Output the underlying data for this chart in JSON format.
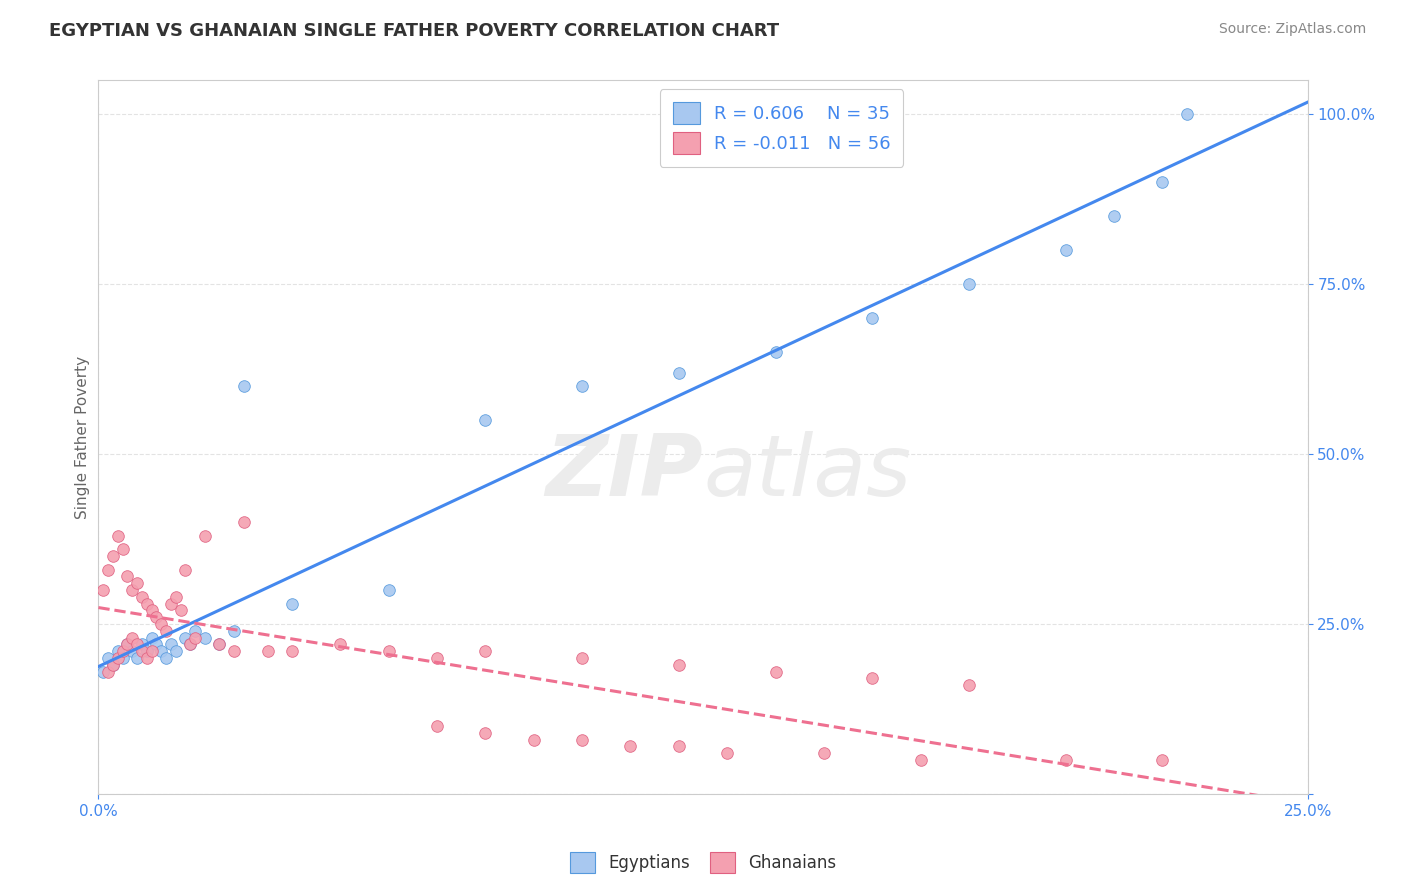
{
  "title": "EGYPTIAN VS GHANAIAN SINGLE FATHER POVERTY CORRELATION CHART",
  "source": "Source: ZipAtlas.com",
  "ylabel": "Single Father Poverty",
  "legend_r_egyptian": "R = 0.606",
  "legend_n_egyptian": "N = 35",
  "legend_r_ghanaian": "R = -0.011",
  "legend_n_ghanaian": "N = 56",
  "color_egyptian_fill": "#A8C8F0",
  "color_egyptian_edge": "#5599DD",
  "color_ghanaian_fill": "#F4A0B0",
  "color_ghanaian_edge": "#E06080",
  "color_line_egyptian": "#4488EE",
  "color_line_ghanaian": "#EE7090",
  "color_title": "#333333",
  "color_source": "#888888",
  "color_axis_labels": "#4488EE",
  "color_grid": "#DDDDDD",
  "watermark_color": "#ECECEC",
  "background_color": "#FFFFFF",
  "xlim": [
    0,
    0.25
  ],
  "ylim": [
    0,
    1.05
  ],
  "ytick_vals": [
    0.0,
    0.25,
    0.5,
    0.75,
    1.0
  ],
  "ytick_labels": [
    "",
    "25.0%",
    "50.0%",
    "75.0%",
    "100.0%"
  ],
  "xtick_vals": [
    0.0,
    0.25
  ],
  "xtick_labels": [
    "0.0%",
    "25.0%"
  ],
  "egyptian_x": [
    0.001,
    0.002,
    0.003,
    0.004,
    0.005,
    0.006,
    0.007,
    0.008,
    0.009,
    0.01,
    0.011,
    0.012,
    0.013,
    0.014,
    0.015,
    0.016,
    0.018,
    0.019,
    0.02,
    0.022,
    0.025,
    0.028,
    0.03,
    0.04,
    0.06,
    0.08,
    0.1,
    0.12,
    0.14,
    0.16,
    0.18,
    0.2,
    0.21,
    0.22,
    0.225
  ],
  "egyptian_y": [
    0.18,
    0.2,
    0.19,
    0.21,
    0.2,
    0.22,
    0.21,
    0.2,
    0.22,
    0.21,
    0.23,
    0.22,
    0.21,
    0.2,
    0.22,
    0.21,
    0.23,
    0.22,
    0.24,
    0.23,
    0.22,
    0.24,
    0.6,
    0.28,
    0.3,
    0.55,
    0.6,
    0.62,
    0.65,
    0.7,
    0.75,
    0.8,
    0.85,
    0.9,
    1.0
  ],
  "ghanaian_x": [
    0.001,
    0.002,
    0.002,
    0.003,
    0.003,
    0.004,
    0.004,
    0.005,
    0.005,
    0.006,
    0.006,
    0.007,
    0.007,
    0.008,
    0.008,
    0.009,
    0.009,
    0.01,
    0.01,
    0.011,
    0.011,
    0.012,
    0.013,
    0.014,
    0.015,
    0.016,
    0.017,
    0.018,
    0.019,
    0.02,
    0.022,
    0.025,
    0.028,
    0.03,
    0.035,
    0.04,
    0.05,
    0.06,
    0.07,
    0.08,
    0.1,
    0.12,
    0.14,
    0.16,
    0.18,
    0.07,
    0.08,
    0.09,
    0.1,
    0.11,
    0.12,
    0.13,
    0.15,
    0.17,
    0.2,
    0.22
  ],
  "ghanaian_y": [
    0.3,
    0.33,
    0.18,
    0.35,
    0.19,
    0.38,
    0.2,
    0.36,
    0.21,
    0.32,
    0.22,
    0.3,
    0.23,
    0.31,
    0.22,
    0.29,
    0.21,
    0.28,
    0.2,
    0.27,
    0.21,
    0.26,
    0.25,
    0.24,
    0.28,
    0.29,
    0.27,
    0.33,
    0.22,
    0.23,
    0.38,
    0.22,
    0.21,
    0.4,
    0.21,
    0.21,
    0.22,
    0.21,
    0.2,
    0.21,
    0.2,
    0.19,
    0.18,
    0.17,
    0.16,
    0.1,
    0.09,
    0.08,
    0.08,
    0.07,
    0.07,
    0.06,
    0.06,
    0.05,
    0.05,
    0.05
  ]
}
